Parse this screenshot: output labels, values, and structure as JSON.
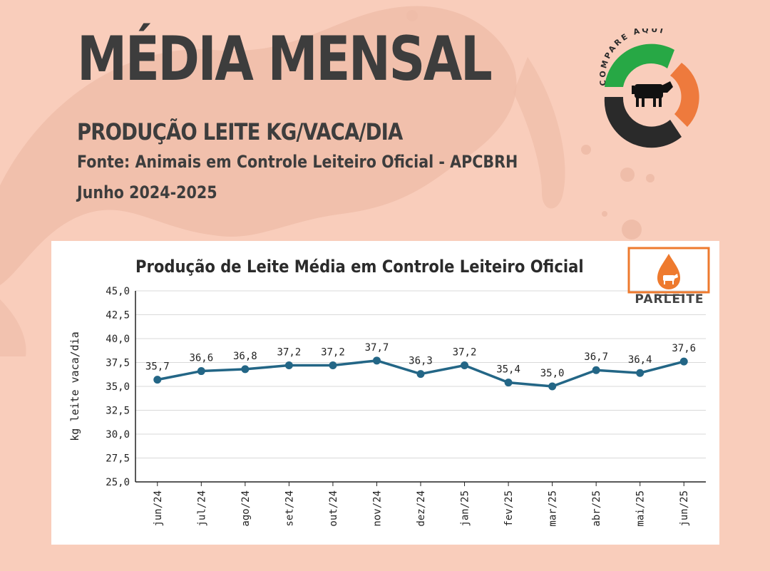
{
  "header": {
    "title": "MÉDIA MENSAL",
    "subtitle": "PRODUÇÃO LEITE KG/VACA/DIA",
    "source": "Fonte: Animais em Controle Leiteiro Oficial - APCBRH",
    "period": "Junho 2024-2025"
  },
  "logos": {
    "compare_aqui_text": "COMPARE AQUI",
    "parleite_text": "PARLEITE"
  },
  "colors": {
    "background": "#f9cdbb",
    "line": "#236686",
    "logo_green": "#27a845",
    "logo_orange": "#ee7a3d",
    "logo_dark": "#2a2a2a",
    "parleite_orange": "#ee7a2e"
  },
  "chart_data": {
    "type": "line",
    "title": "Produção de Leite Média em Controle Leiteiro Oficial",
    "xlabel": "",
    "ylabel": "kg leite vaca/dia",
    "ylim": [
      25,
      45
    ],
    "yticks": [
      "25,0",
      "27,5",
      "30,0",
      "32,5",
      "35,0",
      "37,5",
      "40,0",
      "42,5",
      "45,0"
    ],
    "grid": true,
    "categories": [
      "jun/24",
      "jul/24",
      "ago/24",
      "set/24",
      "out/24",
      "nov/24",
      "dez/24",
      "jan/25",
      "fev/25",
      "mar/25",
      "abr/25",
      "mai/25",
      "jun/25"
    ],
    "values": [
      35.7,
      36.6,
      36.8,
      37.2,
      37.2,
      37.7,
      36.3,
      37.2,
      35.4,
      35.0,
      36.7,
      36.4,
      37.6
    ],
    "data_labels": [
      "35,7",
      "36,6",
      "36,8",
      "37,2",
      "37,2",
      "37,7",
      "36,3",
      "37,2",
      "35,4",
      "35,0",
      "36,7",
      "36,4",
      "37,6"
    ]
  }
}
